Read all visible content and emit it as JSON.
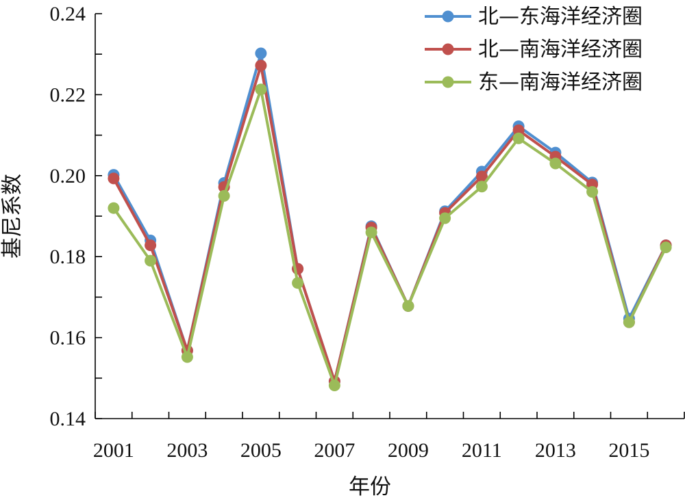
{
  "chart_data": {
    "type": "line",
    "xlabel": "年份",
    "ylabel": "基尼系数",
    "x": [
      2001,
      2002,
      2003,
      2004,
      2005,
      2006,
      2007,
      2008,
      2009,
      2010,
      2011,
      2012,
      2013,
      2014,
      2015,
      2016
    ],
    "x_tick_labels": [
      "2001",
      "2003",
      "2005",
      "2007",
      "2009",
      "2011",
      "2013",
      "2015"
    ],
    "xlim": [
      2000.5,
      2016.5
    ],
    "ylim": [
      0.14,
      0.24
    ],
    "y_ticks": [
      "0.14",
      "0.16",
      "0.18",
      "0.20",
      "0.22",
      "0.24"
    ],
    "grid": false,
    "legend_position": "top-right",
    "series": [
      {
        "name": "北—东海洋经济圈",
        "color": "#4f8fd0",
        "values": [
          0.2002,
          0.184,
          0.1568,
          0.1982,
          0.2302,
          0.177,
          0.1492,
          0.1875,
          0.1678,
          0.1912,
          0.201,
          0.2122,
          0.2057,
          0.1983,
          0.1647,
          0.1828
        ]
      },
      {
        "name": "北—南海洋经济圈",
        "color": "#c0504d",
        "values": [
          0.1993,
          0.1828,
          0.1568,
          0.1972,
          0.2272,
          0.177,
          0.1492,
          0.1872,
          0.1678,
          0.1908,
          0.1998,
          0.2112,
          0.2047,
          0.1978,
          0.1638,
          0.1828
        ]
      },
      {
        "name": "东—南海洋经济圈",
        "color": "#9bbb59",
        "values": [
          0.192,
          0.179,
          0.1552,
          0.195,
          0.2213,
          0.1735,
          0.1482,
          0.186,
          0.1678,
          0.1895,
          0.1973,
          0.2092,
          0.203,
          0.196,
          0.1638,
          0.1823
        ]
      }
    ]
  }
}
